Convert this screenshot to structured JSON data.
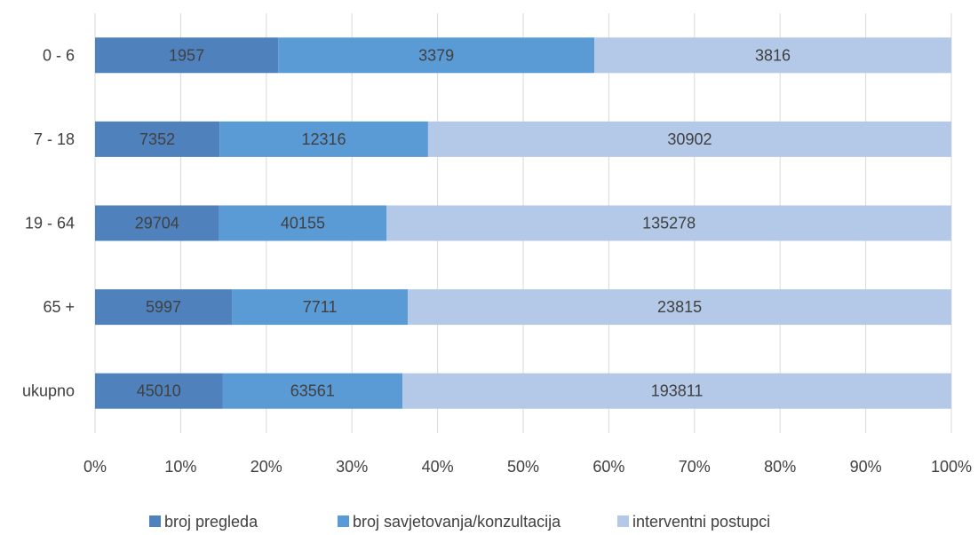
{
  "chart_data": {
    "type": "bar",
    "orientation": "horizontal",
    "stacked": "percent",
    "categories": [
      "0 - 6",
      "7 - 18",
      "19 - 64",
      "65 +",
      "ukupno"
    ],
    "series": [
      {
        "name": "broj pregleda",
        "color": "#4f81bd",
        "values": [
          1957,
          7352,
          29704,
          5997,
          45010
        ]
      },
      {
        "name": "broj savjetovanja/konzultacija",
        "color": "#5b9bd5",
        "values": [
          3379,
          12316,
          40155,
          7711,
          63561
        ]
      },
      {
        "name": "interventni postupci",
        "color": "#b4c9e8",
        "values": [
          3816,
          30902,
          135278,
          23815,
          193811
        ]
      }
    ],
    "xticks": [
      "0%",
      "10%",
      "20%",
      "30%",
      "40%",
      "50%",
      "60%",
      "70%",
      "80%",
      "90%",
      "100%"
    ],
    "xlim": [
      0,
      100
    ],
    "grid": true,
    "legend": "bottom",
    "title": "",
    "xlabel": "",
    "ylabel": ""
  }
}
